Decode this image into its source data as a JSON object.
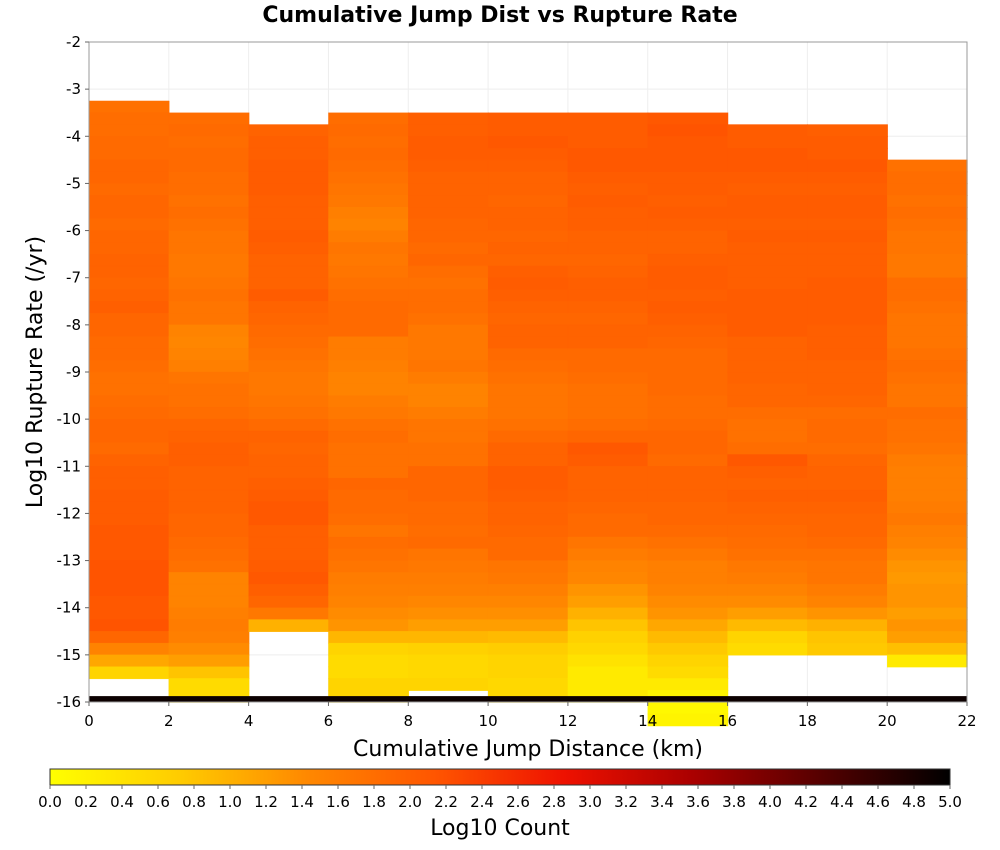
{
  "chart_data": {
    "type": "heatmap",
    "title": "Cumulative Jump Dist vs Rupture Rate",
    "xlabel": "Cumulative Jump Distance (km)",
    "ylabel": "Log10 Rupture Rate (/yr)",
    "xlim": [
      0,
      22
    ],
    "ylim": [
      -16,
      -2
    ],
    "x_ticks": [
      "0",
      "2",
      "4",
      "6",
      "8",
      "10",
      "12",
      "14",
      "16",
      "18",
      "20",
      "22"
    ],
    "y_ticks": [
      "-2",
      "-3",
      "-4",
      "-5",
      "-6",
      "-7",
      "-8",
      "-9",
      "-10",
      "-11",
      "-12",
      "-13",
      "-14",
      "-15",
      "-16"
    ],
    "x_bin_edges": [
      0,
      2,
      4,
      6,
      8,
      10,
      12,
      14,
      16,
      18,
      20,
      22
    ],
    "y_bin_width": 0.25,
    "grid": true,
    "columns": [
      {
        "x0": 0,
        "x1": 2,
        "top": -3.25,
        "values": [
          1.75,
          1.8,
          1.8,
          1.85,
          1.85,
          1.9,
          1.9,
          1.85,
          1.9,
          1.9,
          1.85,
          1.9,
          1.9,
          1.95,
          1.95,
          1.9,
          1.95,
          2.0,
          1.9,
          1.9,
          1.85,
          1.85,
          1.8,
          1.75,
          1.75,
          1.8,
          1.85,
          1.9,
          1.9,
          1.85,
          1.95,
          2.0,
          2.0,
          2.05,
          2.05,
          2.05,
          2.1,
          2.1,
          2.1,
          2.15,
          2.15,
          2.15,
          2.1,
          2.1,
          2.15,
          1.9,
          1.5,
          1.1,
          0.6
        ]
      },
      {
        "x0": 2,
        "x1": 4,
        "top": -3.5,
        "values": [
          1.8,
          1.85,
          1.8,
          1.85,
          1.85,
          1.8,
          1.8,
          1.75,
          1.8,
          1.75,
          1.7,
          1.7,
          1.65,
          1.65,
          1.7,
          1.75,
          1.7,
          1.7,
          1.5,
          1.45,
          1.5,
          1.55,
          1.7,
          1.75,
          1.75,
          1.8,
          1.9,
          1.95,
          2.0,
          2.0,
          1.95,
          1.95,
          1.95,
          1.95,
          1.9,
          1.9,
          1.85,
          1.8,
          1.75,
          1.5,
          1.5,
          1.5,
          1.55,
          1.6,
          1.55,
          1.4,
          1.2,
          0.8,
          0.5,
          0.5
        ]
      },
      {
        "x0": 4,
        "x1": 6,
        "top": -3.75,
        "values": [
          1.95,
          2.0,
          2.0,
          2.05,
          2.05,
          2.05,
          2.0,
          2.0,
          2.0,
          2.05,
          2.0,
          1.95,
          1.95,
          1.95,
          2.05,
          1.95,
          1.9,
          1.85,
          1.8,
          1.75,
          1.7,
          1.65,
          1.65,
          1.7,
          1.75,
          1.85,
          1.95,
          1.9,
          1.95,
          1.95,
          2.0,
          2.05,
          2.1,
          2.1,
          2.0,
          2.0,
          2.0,
          2.05,
          2.1,
          2.0,
          1.9,
          1.65,
          1.0
        ]
      },
      {
        "x0": 6,
        "x1": 8,
        "top": -3.5,
        "values": [
          1.8,
          1.85,
          1.8,
          1.85,
          1.8,
          1.75,
          1.7,
          1.65,
          1.55,
          1.5,
          1.6,
          1.7,
          1.65,
          1.7,
          1.75,
          1.8,
          1.85,
          1.85,
          1.85,
          1.6,
          1.6,
          1.55,
          1.5,
          1.5,
          1.6,
          1.65,
          1.75,
          1.8,
          1.75,
          1.75,
          1.75,
          1.9,
          1.85,
          1.85,
          1.8,
          1.7,
          1.8,
          1.75,
          1.7,
          1.6,
          1.55,
          1.5,
          1.4,
          1.3,
          0.95,
          0.6,
          0.5,
          0.5,
          0.6,
          0.6
        ]
      },
      {
        "x0": 8,
        "x1": 10,
        "top": -3.5,
        "values": [
          2.0,
          2.0,
          2.05,
          2.05,
          2.0,
          1.95,
          1.95,
          1.95,
          1.95,
          1.9,
          1.9,
          1.85,
          1.9,
          1.8,
          1.75,
          1.8,
          1.8,
          1.75,
          1.65,
          1.65,
          1.65,
          1.7,
          1.6,
          1.5,
          1.5,
          1.6,
          1.7,
          1.7,
          1.75,
          1.75,
          1.9,
          1.9,
          1.9,
          1.85,
          1.85,
          1.8,
          1.85,
          1.7,
          1.65,
          1.6,
          1.55,
          1.45,
          1.35,
          1.2,
          0.95,
          0.65,
          0.55,
          0.55,
          0.6
        ]
      },
      {
        "x0": 10,
        "x1": 12,
        "top": -3.5,
        "values": [
          2.05,
          2.05,
          2.1,
          2.05,
          2.0,
          1.95,
          1.95,
          1.9,
          1.95,
          1.95,
          1.9,
          1.95,
          1.9,
          2.0,
          2.05,
          2.0,
          1.95,
          1.9,
          1.95,
          1.95,
          1.85,
          1.8,
          1.75,
          1.7,
          1.7,
          1.7,
          1.75,
          1.85,
          1.95,
          1.95,
          2.05,
          2.05,
          2.0,
          1.95,
          1.95,
          1.9,
          1.85,
          1.85,
          1.7,
          1.65,
          1.55,
          1.45,
          1.35,
          1.2,
          0.9,
          0.7,
          0.6,
          0.6,
          0.55,
          0.55
        ]
      },
      {
        "x0": 12,
        "x1": 14,
        "top": -3.5,
        "values": [
          2.05,
          2.05,
          2.05,
          2.1,
          2.1,
          2.05,
          2.0,
          2.05,
          2.0,
          2.0,
          1.95,
          1.95,
          1.9,
          1.95,
          2.0,
          2.0,
          1.95,
          1.9,
          1.95,
          1.95,
          1.85,
          1.85,
          1.8,
          1.75,
          1.75,
          1.75,
          1.8,
          1.9,
          2.1,
          2.05,
          1.95,
          1.95,
          1.95,
          1.9,
          1.85,
          1.85,
          1.7,
          1.6,
          1.5,
          1.45,
          1.3,
          1.2,
          1.0,
          0.8,
          0.65,
          0.55,
          0.4,
          0.3,
          0.3,
          0.3
        ]
      },
      {
        "x0": 14,
        "x1": 16,
        "top": -3.5,
        "values": [
          2.1,
          2.15,
          2.1,
          2.1,
          2.1,
          2.05,
          2.05,
          2.0,
          2.05,
          2.0,
          1.95,
          1.95,
          2.0,
          2.05,
          2.05,
          2.0,
          2.05,
          2.0,
          1.95,
          1.9,
          1.85,
          1.85,
          1.85,
          1.85,
          1.8,
          1.8,
          1.85,
          1.9,
          1.9,
          1.85,
          1.95,
          1.95,
          1.95,
          1.9,
          1.9,
          1.85,
          1.75,
          1.65,
          1.55,
          1.55,
          1.5,
          1.4,
          1.3,
          1.1,
          0.9,
          0.75,
          0.6,
          0.5,
          0.3,
          0.15,
          0.1,
          0.15
        ]
      },
      {
        "x0": 16,
        "x1": 18,
        "top": -3.75,
        "values": [
          2.05,
          2.05,
          2.1,
          2.1,
          2.05,
          2.0,
          2.05,
          2.05,
          2.0,
          2.05,
          2.0,
          2.0,
          2.0,
          2.0,
          2.05,
          2.05,
          2.05,
          2.05,
          1.95,
          1.95,
          1.95,
          1.95,
          1.9,
          1.9,
          1.8,
          1.75,
          1.75,
          1.8,
          2.1,
          2.0,
          1.95,
          2.0,
          1.95,
          1.9,
          1.85,
          1.8,
          1.75,
          1.65,
          1.6,
          1.5,
          1.4,
          1.2,
          0.9,
          0.6,
          0.5
        ]
      },
      {
        "x0": 18,
        "x1": 20,
        "top": -3.75,
        "values": [
          2.0,
          2.05,
          2.05,
          2.1,
          2.05,
          2.0,
          2.05,
          2.05,
          2.0,
          2.05,
          2.0,
          2.0,
          2.0,
          2.05,
          2.05,
          2.05,
          2.05,
          2.0,
          2.0,
          2.0,
          1.95,
          1.95,
          1.95,
          1.9,
          1.8,
          1.85,
          1.85,
          1.8,
          1.9,
          1.95,
          1.95,
          2.0,
          1.95,
          1.9,
          1.9,
          1.85,
          1.75,
          1.7,
          1.7,
          1.6,
          1.5,
          1.3,
          1.0,
          0.8,
          0.75
        ]
      },
      {
        "x0": 20,
        "x1": 22,
        "top": -4.5,
        "values": [
          1.75,
          1.8,
          1.8,
          1.75,
          1.8,
          1.75,
          1.7,
          1.7,
          1.65,
          1.65,
          1.8,
          1.8,
          1.75,
          1.7,
          1.7,
          1.7,
          1.75,
          1.8,
          1.75,
          1.7,
          1.7,
          1.8,
          1.75,
          1.75,
          1.7,
          1.6,
          1.55,
          1.55,
          1.55,
          1.6,
          1.65,
          1.55,
          1.5,
          1.4,
          1.3,
          1.25,
          1.3,
          1.3,
          1.2,
          1.3,
          1.2,
          0.85,
          0.3
        ]
      }
    ],
    "bottom_row": {
      "y0": -16,
      "y1": -15.875,
      "value": 4.9
    },
    "colorbar": {
      "label": "Log10 Count",
      "range": [
        0,
        5
      ],
      "ticks": [
        "0.0",
        "0.2",
        "0.4",
        "0.6",
        "0.8",
        "1.0",
        "1.2",
        "1.4",
        "1.6",
        "1.8",
        "2.0",
        "2.2",
        "2.4",
        "2.6",
        "2.8",
        "3.0",
        "3.2",
        "3.4",
        "3.6",
        "3.8",
        "4.0",
        "4.2",
        "4.4",
        "4.6",
        "4.8",
        "5.0"
      ],
      "placement": "bottom",
      "colors": [
        "#ffff00",
        "#ffcc00",
        "#ff8800",
        "#ff5500",
        "#ee1100",
        "#aa0000",
        "#550000",
        "#000000"
      ]
    }
  }
}
